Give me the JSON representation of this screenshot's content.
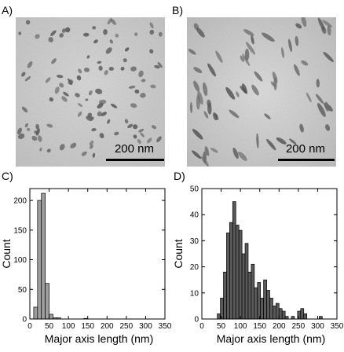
{
  "panels": {
    "a": {
      "label": "A)",
      "scale_bar_text": "200 nm"
    },
    "b": {
      "label": "B)",
      "scale_bar_text": "200 nm"
    },
    "c": {
      "label": "C)"
    },
    "d": {
      "label": "D)"
    }
  },
  "chart_data": [
    {
      "type": "bar",
      "panel": "C)",
      "xlabel": "Major axis length (nm)",
      "ylabel": "Count",
      "xlim": [
        0,
        350
      ],
      "ylim": [
        0,
        220
      ],
      "xticks": [
        "0",
        "50",
        "100",
        "150",
        "200",
        "250",
        "300",
        "350"
      ],
      "yticks": [
        "0",
        "50",
        "100",
        "150",
        "200"
      ],
      "bar_color": "#9e9e9e",
      "bin_width": 10,
      "bins": [
        {
          "x": 10,
          "y": 20
        },
        {
          "x": 20,
          "y": 200
        },
        {
          "x": 30,
          "y": 212
        },
        {
          "x": 40,
          "y": 60
        },
        {
          "x": 50,
          "y": 8
        },
        {
          "x": 60,
          "y": 2
        },
        {
          "x": 70,
          "y": 2
        },
        {
          "x": 140,
          "y": 1
        }
      ]
    },
    {
      "type": "bar",
      "panel": "D)",
      "xlabel": "Major axis length (nm)",
      "ylabel": "Count",
      "xlim": [
        0,
        350
      ],
      "ylim": [
        0,
        50
      ],
      "xticks": [
        "0",
        "50",
        "100",
        "150",
        "200",
        "250",
        "300",
        "350"
      ],
      "yticks": [
        "0",
        "10",
        "20",
        "30",
        "40",
        "50"
      ],
      "bar_color": "#5a5a5a",
      "bin_width": 8,
      "bins": [
        {
          "x": 40,
          "y": 2
        },
        {
          "x": 48,
          "y": 8
        },
        {
          "x": 56,
          "y": 18
        },
        {
          "x": 64,
          "y": 33
        },
        {
          "x": 72,
          "y": 37
        },
        {
          "x": 80,
          "y": 45
        },
        {
          "x": 88,
          "y": 36
        },
        {
          "x": 96,
          "y": 34
        },
        {
          "x": 104,
          "y": 25
        },
        {
          "x": 112,
          "y": 29
        },
        {
          "x": 120,
          "y": 18
        },
        {
          "x": 128,
          "y": 21
        },
        {
          "x": 136,
          "y": 12
        },
        {
          "x": 144,
          "y": 14
        },
        {
          "x": 152,
          "y": 8
        },
        {
          "x": 160,
          "y": 15
        },
        {
          "x": 168,
          "y": 11
        },
        {
          "x": 176,
          "y": 8
        },
        {
          "x": 184,
          "y": 5
        },
        {
          "x": 192,
          "y": 6
        },
        {
          "x": 200,
          "y": 4
        },
        {
          "x": 208,
          "y": 3
        },
        {
          "x": 216,
          "y": 1
        },
        {
          "x": 232,
          "y": 1
        },
        {
          "x": 248,
          "y": 3
        },
        {
          "x": 256,
          "y": 4
        },
        {
          "x": 264,
          "y": 2
        },
        {
          "x": 304,
          "y": 1
        }
      ]
    }
  ]
}
